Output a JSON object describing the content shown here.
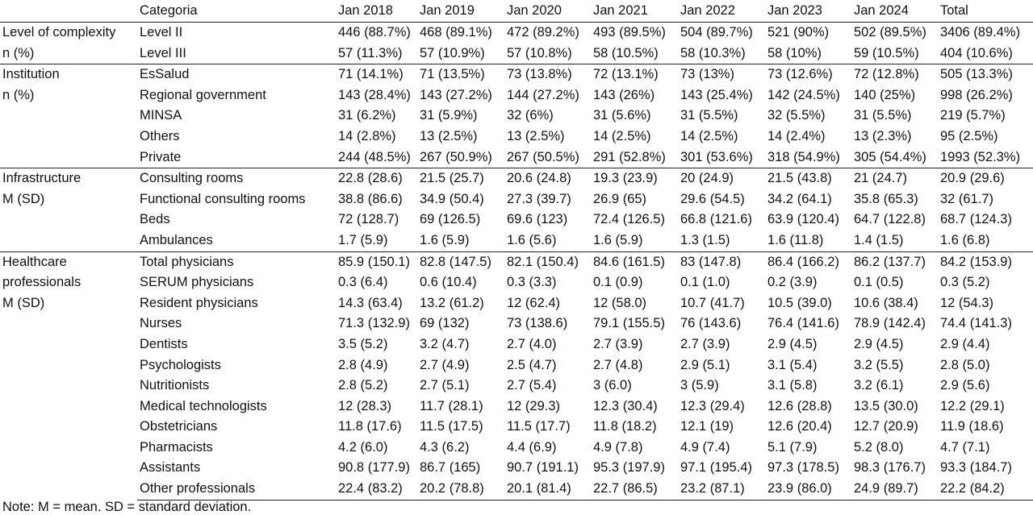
{
  "header": [
    "",
    "Categoria",
    "Jan 2018",
    "Jan 2019",
    "Jan 2020",
    "Jan 2021",
    "Jan 2022",
    "Jan 2023",
    "Jan 2024",
    "Total"
  ],
  "groups": [
    {
      "label_lines": [
        "Level of complexity",
        "n (%)"
      ],
      "rows": [
        {
          "category": "Level II",
          "values": [
            "446 (88.7%)",
            "468 (89.1%)",
            "472 (89.2%)",
            "493 (89.5%)",
            "504 (89.7%)",
            "521 (90%)",
            "502 (89.5%)",
            "3406 (89.4%)"
          ]
        },
        {
          "category": "Level III",
          "values": [
            "57 (11.3%)",
            "57 (10.9%)",
            "57 (10.8%)",
            "58 (10.5%)",
            "58 (10.3%)",
            "58 (10%)",
            "59 (10.5%)",
            "404 (10.6%)"
          ]
        }
      ]
    },
    {
      "label_lines": [
        "Institution",
        "n (%)"
      ],
      "rows": [
        {
          "category": "EsSalud",
          "values": [
            "71 (14.1%)",
            "71 (13.5%)",
            "73 (13.8%)",
            "72 (13.1%)",
            "73 (13%)",
            "73 (12.6%)",
            "72 (12.8%)",
            "505 (13.3%)"
          ]
        },
        {
          "category": "Regional government",
          "values": [
            "143 (28.4%)",
            "143 (27.2%)",
            "144 (27.2%)",
            "143 (26%)",
            "143 (25.4%)",
            "142 (24.5%)",
            "140 (25%)",
            "998 (26.2%)"
          ]
        },
        {
          "category": "MINSA",
          "values": [
            "31 (6.2%)",
            "31 (5.9%)",
            "32 (6%)",
            "31 (5.6%)",
            "31 (5.5%)",
            "32 (5.5%)",
            "31 (5.5%)",
            "219 (5.7%)"
          ]
        },
        {
          "category": "Others",
          "values": [
            "14 (2.8%)",
            "13 (2.5%)",
            "13 (2.5%)",
            "14 (2.5%)",
            "14 (2.5%)",
            "14 (2.4%)",
            "13 (2.3%)",
            "95 (2.5%)"
          ]
        },
        {
          "category": "Private",
          "values": [
            "244 (48.5%)",
            "267 (50.9%)",
            "267 (50.5%)",
            "291 (52.8%)",
            "301 (53.6%)",
            "318 (54.9%)",
            "305 (54.4%)",
            "1993 (52.3%)"
          ]
        }
      ]
    },
    {
      "label_lines": [
        "Infrastructure",
        "M (SD)"
      ],
      "rows": [
        {
          "category": "Consulting rooms",
          "values": [
            "22.8 (28.6)",
            "21.5 (25.7)",
            "20.6 (24.8)",
            "19.3 (23.9)",
            "20 (24.9)",
            "21.5 (43.8)",
            "21 (24.7)",
            "20.9 (29.6)"
          ]
        },
        {
          "category": "Functional consulting rooms",
          "values": [
            "38.8 (86.6)",
            "34.9 (50.4)",
            "27.3 (39.7)",
            "26.9 (65)",
            "29.6 (54.5)",
            "34.2 (64.1)",
            "35.8 (65.3)",
            "32 (61.7)"
          ]
        },
        {
          "category": "Beds",
          "values": [
            "72 (128.7)",
            "69 (126.5)",
            "69.6 (123)",
            "72.4 (126.5)",
            "66.8 (121.6)",
            "63.9 (120.4)",
            "64.7 (122.8)",
            "68.7 (124.3)"
          ]
        },
        {
          "category": "Ambulances",
          "values": [
            "1.7 (5.9)",
            "1.6 (5.9)",
            "1.6 (5.6)",
            "1.6 (5.9)",
            "1.3 (1.5)",
            "1.6 (11.8)",
            "1.4 (1.5)",
            "1.6 (6.8)"
          ]
        }
      ]
    },
    {
      "label_lines": [
        "Healthcare",
        "professionals",
        "M (SD)"
      ],
      "rows": [
        {
          "category": "Total physicians",
          "values": [
            "85.9 (150.1)",
            "82.8 (147.5)",
            "82.1 (150.4)",
            "84.6 (161.5)",
            "83 (147.8)",
            "86.4 (166.2)",
            "86.2 (137.7)",
            "84.2 (153.9)"
          ]
        },
        {
          "category": "SERUM physicians",
          "values": [
            "0.3 (6.4)",
            "0.6 (10.4)",
            "0.3 (3.3)",
            "0.1 (0.9)",
            "0.1 (1.0)",
            "0.2 (3.9)",
            "0.1 (0.5)",
            "0.3 (5.2)"
          ]
        },
        {
          "category": "Resident physicians",
          "values": [
            "14.3 (63.4)",
            "13.2 (61.2)",
            "12 (62.4)",
            "12 (58.0)",
            "10.7 (41.7)",
            "10.5 (39.0)",
            "10.6 (38.4)",
            "12 (54.3)"
          ]
        },
        {
          "category": "Nurses",
          "values": [
            "71.3 (132.9)",
            "69 (132)",
            "73 (138.6)",
            "79.1 (155.5)",
            "76 (143.6)",
            "76.4 (141.6)",
            "78.9 (142.4)",
            "74.4 (141.3)"
          ]
        },
        {
          "category": "Dentists",
          "values": [
            "3.5 (5.2)",
            "3.2 (4.7)",
            "2.7 (4.0)",
            "2.7 (3.9)",
            "2.7 (3.9)",
            "2.9 (4.5)",
            "2.9 (4.5)",
            "2.9 (4.4)"
          ]
        },
        {
          "category": "Psychologists",
          "values": [
            "2.8 (4.9)",
            "2.7 (4.9)",
            "2.5 (4.7)",
            "2.7 (4.8)",
            "2.9 (5.1)",
            "3.1 (5.4)",
            "3.2 (5.5)",
            "2.8 (5.0)"
          ]
        },
        {
          "category": "Nutritionists",
          "values": [
            "2.8 (5.2)",
            "2.7 (5.1)",
            "2.7 (5.4)",
            "3 (6.0)",
            "3 (5.9)",
            "3.1 (5.8)",
            "3.2 (6.1)",
            "2.9 (5.6)"
          ]
        },
        {
          "category": "Medical technologists",
          "values": [
            "12 (28.3)",
            "11.7 (28.1)",
            "12 (29.3)",
            "12.3 (30.4)",
            "12.3 (29.4)",
            "12.6 (28.8)",
            "13.5 (30.0)",
            "12.2 (29.1)"
          ]
        },
        {
          "category": "Obstetricians",
          "values": [
            "11.8 (17.6)",
            "11.5 (17.5)",
            "11.5 (17.7)",
            "11.8 (18.2)",
            "12.1 (19)",
            "12.6 (20.4)",
            "12.7 (20.9)",
            "11.9 (18.6)"
          ]
        },
        {
          "category": "Pharmacists",
          "values": [
            "4.2 (6.0)",
            "4.3 (6.2)",
            "4.4 (6.9)",
            "4.9 (7.8)",
            "4.9 (7.4)",
            "5.1 (7.9)",
            "5.2 (8.0)",
            "4.7 (7.1)"
          ]
        },
        {
          "category": "Assistants",
          "values": [
            "90.8 (177.9)",
            "86.7 (165)",
            "90.7 (191.1)",
            "95.3 (197.9)",
            "97.1 (195.4)",
            "97.3 (178.5)",
            "98.3 (176.7)",
            "93.3 (184.7)"
          ]
        },
        {
          "category": "Other professionals",
          "values": [
            "22.4 (83.2)",
            "20.2 (78.8)",
            "20.1 (81.4)",
            "22.7 (86.5)",
            "23.2 (87.1)",
            "23.9 (86.0)",
            "24.9 (89.7)",
            "22.2 (84.2)"
          ]
        }
      ]
    }
  ],
  "note": "Note: M = mean. SD = standard deviation."
}
